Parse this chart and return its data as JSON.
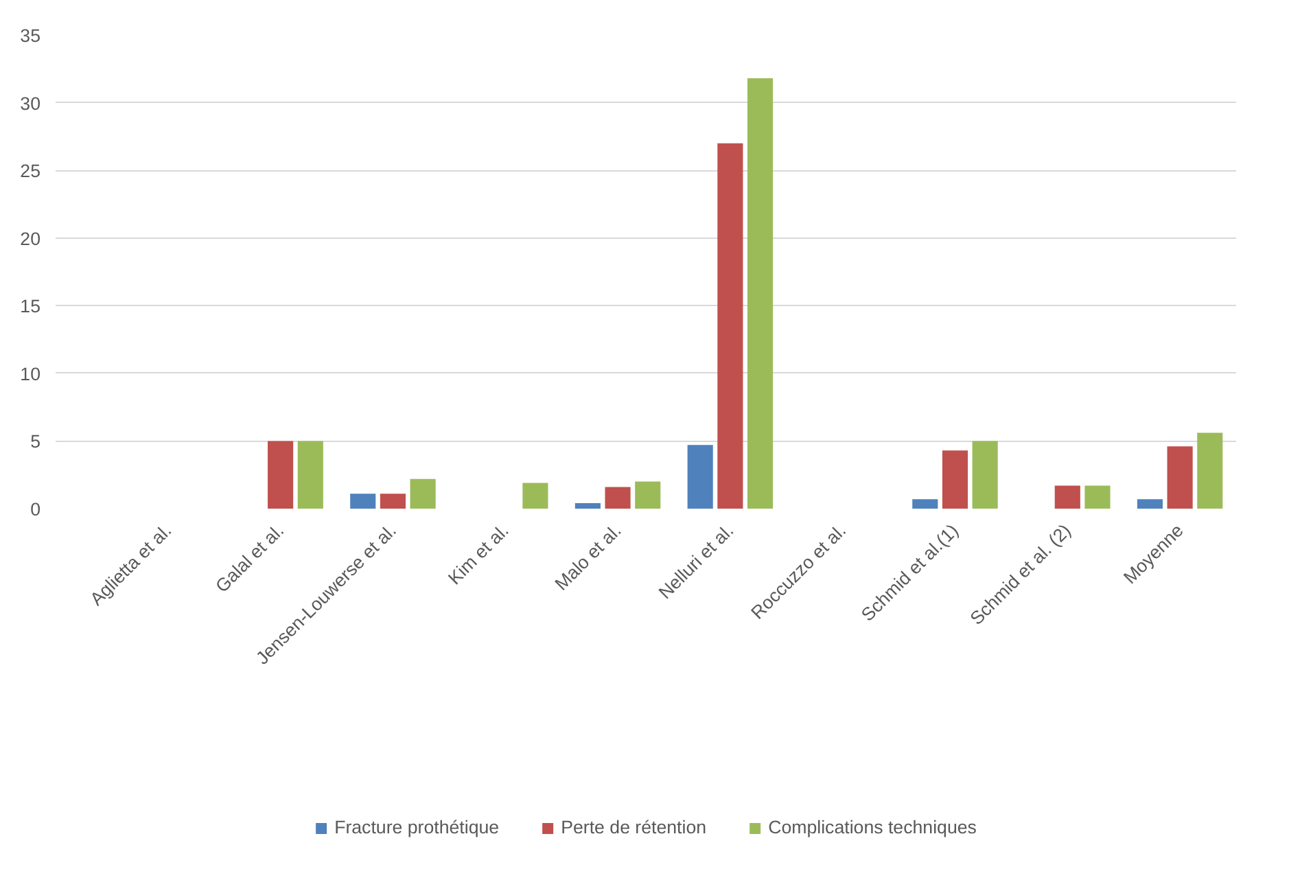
{
  "chart_data": {
    "type": "bar",
    "categories": [
      "Aglietta et al.",
      "Galal et al.",
      "Jensen-Louwerse et al.",
      "Kim et al.",
      "Malo et al.",
      "Nelluri et al.",
      "Roccuzzo et al.",
      "Schmid et al.(1)",
      "Schmid et al. (2)",
      "Moyenne"
    ],
    "series": [
      {
        "name": "Fracture prothétique",
        "color": "#4f81bd",
        "values": [
          0,
          0,
          1.1,
          0,
          0.4,
          4.7,
          0,
          0.7,
          0,
          0.7
        ]
      },
      {
        "name": "Perte de rétention",
        "color": "#c0504d",
        "values": [
          0,
          5,
          1.1,
          0,
          1.6,
          27,
          0,
          4.3,
          1.7,
          4.6
        ]
      },
      {
        "name": "Complications techniques",
        "color": "#9bbb59",
        "values": [
          0,
          5,
          2.2,
          1.9,
          2.0,
          31.8,
          0,
          5.0,
          1.7,
          5.6
        ]
      }
    ],
    "ylim": [
      0,
      35
    ],
    "yticks": [
      0,
      5,
      10,
      15,
      20,
      25,
      30,
      35
    ],
    "grid": "y",
    "legend": "bottom"
  }
}
